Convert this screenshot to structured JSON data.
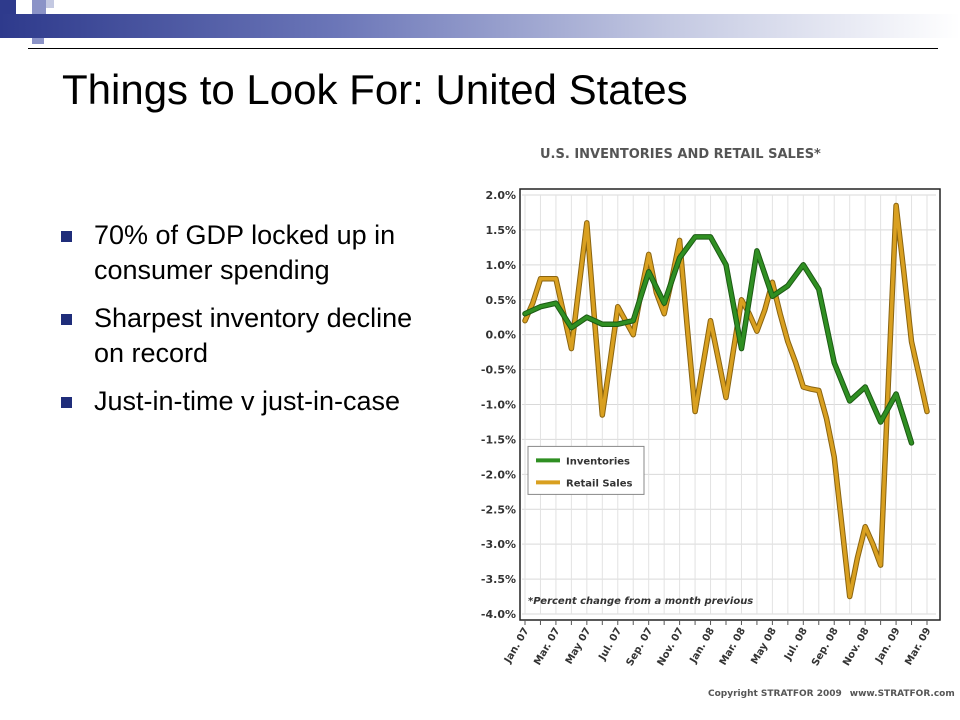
{
  "slide": {
    "title": "Things to Look For: United States",
    "bullets": [
      "70% of GDP locked up in consumer spending",
      "Sharpest inventory decline on record",
      "Just-in-time v just-in-case"
    ],
    "copyright": "Copyright STRATFOR 2009",
    "website": "www.STRATFOR.com"
  },
  "colors": {
    "accent": "#1f2d7a",
    "inventories": "#2f8f22",
    "retail_sales": "#d9a020"
  },
  "chart_data": {
    "type": "line",
    "title": "U.S. INVENTORIES AND RETAIL SALES*",
    "note": "*Percent change from a month previous",
    "x_tick_labels": [
      "Jan. 07",
      "",
      "Mar. 07",
      "",
      "May 07",
      "",
      "Jul. 07",
      "",
      "Sep. 07",
      "",
      "Nov. 07",
      "",
      "Jan. 08",
      "",
      "Mar. 08",
      "",
      "May 08",
      "",
      "Jul. 08",
      "",
      "Sep. 08",
      "",
      "Nov. 08",
      "",
      "Jan. 09",
      "",
      "Mar. 09"
    ],
    "y_tick_labels": [
      "2.0%",
      "1.5%",
      "1.0%",
      "0.5%",
      "0.0%",
      "-0.5%",
      "-1.0%",
      "-1.5%",
      "-2.0%",
      "-2.5%",
      "-3.0%",
      "-3.5%",
      "-4.0%"
    ],
    "ylim": [
      -4.0,
      2.0
    ],
    "legend_position": "left-middle",
    "grid": true,
    "series": [
      {
        "name": "Inventories",
        "x": [
          0,
          1,
          2,
          3,
          4,
          5,
          6,
          7,
          8,
          9,
          10,
          11,
          12,
          13,
          14,
          15,
          16,
          17,
          18,
          19,
          20,
          21,
          22,
          23,
          24,
          25
        ],
        "values": [
          0.3,
          0.4,
          0.45,
          0.1,
          0.25,
          0.15,
          0.15,
          0.2,
          0.9,
          0.45,
          1.1,
          1.4,
          1.4,
          1.0,
          -0.2,
          1.2,
          0.55,
          0.7,
          1.0,
          0.65,
          -0.4,
          -0.95,
          -0.75,
          -1.25,
          -0.85,
          -1.55
        ]
      },
      {
        "name": "Retail Sales",
        "x": [
          0,
          0.5,
          1,
          1.5,
          2,
          2.5,
          3,
          3.5,
          4,
          4.5,
          5,
          5.5,
          6,
          6.5,
          7,
          7.5,
          8,
          8.5,
          9,
          9.5,
          10,
          10.5,
          11,
          11.5,
          12,
          12.5,
          13,
          13.5,
          14,
          14.5,
          15,
          15.5,
          16,
          16.5,
          17,
          17.5,
          18,
          18.5,
          19,
          19.5,
          20,
          20.5,
          21,
          21.5,
          22,
          22.5,
          23,
          23.5,
          24,
          24.5,
          25,
          25.5,
          26
        ],
        "values": [
          0.2,
          0.45,
          0.8,
          0.8,
          0.8,
          0.3,
          -0.2,
          0.7,
          1.6,
          0.2,
          -1.15,
          -0.4,
          0.4,
          0.2,
          0.0,
          0.6,
          1.15,
          0.6,
          0.3,
          0.8,
          1.35,
          0.1,
          -1.1,
          -0.45,
          0.2,
          -0.35,
          -0.9,
          -0.2,
          0.5,
          0.3,
          0.05,
          0.35,
          0.75,
          0.3,
          -0.1,
          -0.4,
          -0.75,
          -0.78,
          -0.8,
          -1.2,
          -1.75,
          -2.75,
          -3.75,
          -3.2,
          -2.75,
          -3.0,
          -3.3,
          -0.7,
          1.85,
          0.9,
          -0.1,
          -0.6,
          -1.1
        ]
      }
    ]
  }
}
